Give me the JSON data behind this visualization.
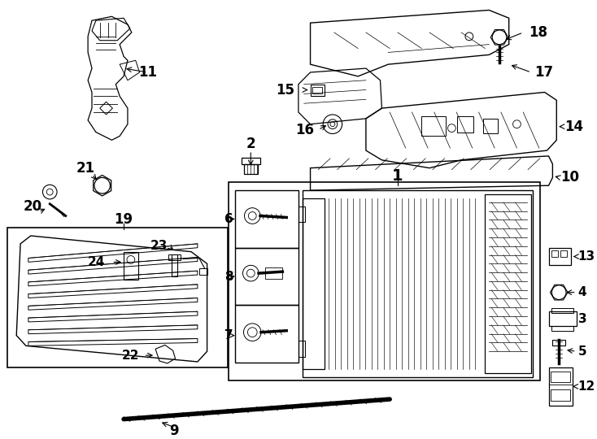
{
  "bg_color": "#ffffff",
  "fig_width": 7.34,
  "fig_height": 5.4,
  "dpi": 100,
  "image_b64": ""
}
